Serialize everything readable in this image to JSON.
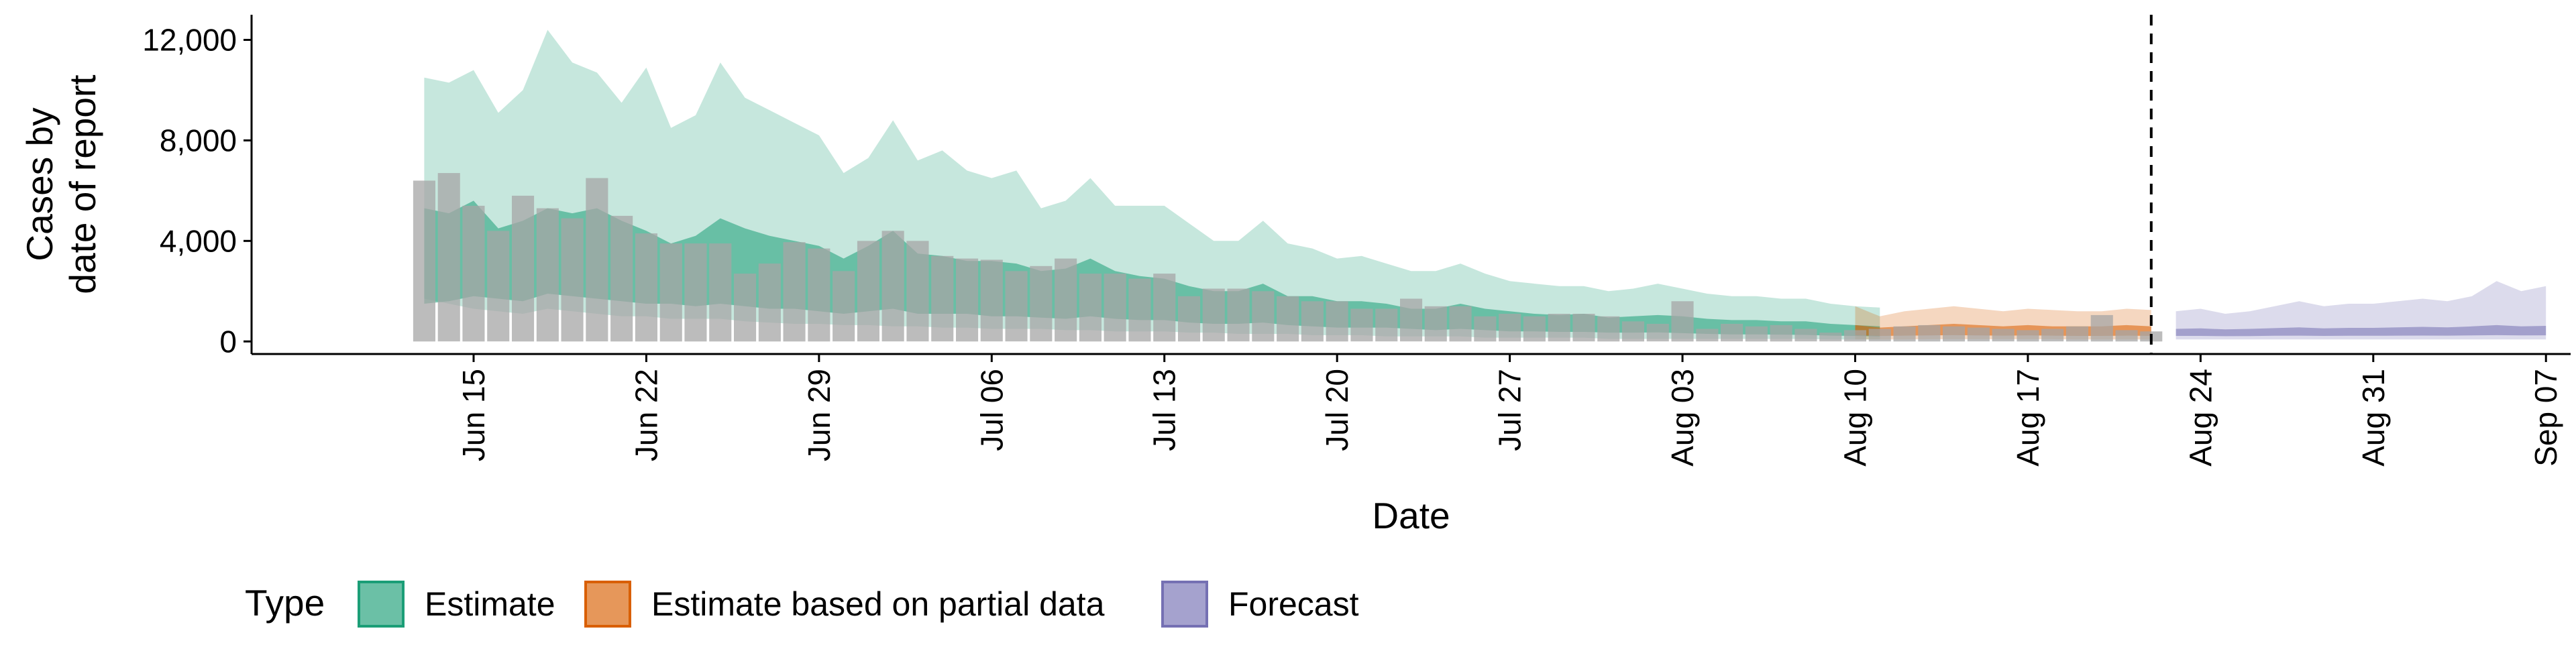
{
  "chart_data": {
    "type": "area",
    "ylabel_lines": [
      "Cases by",
      "date of report"
    ],
    "xlabel": "Date",
    "ylim": [
      -500,
      13000
    ],
    "xlim": [
      "2020-06-06",
      "2020-09-08"
    ],
    "y_ticks": [
      0,
      4000,
      8000,
      12000
    ],
    "y_tick_labels": [
      "0",
      "4,000",
      "8,000",
      "12,000"
    ],
    "x_ticks": [
      "2020-06-15",
      "2020-06-22",
      "2020-06-29",
      "2020-07-06",
      "2020-07-13",
      "2020-07-20",
      "2020-07-27",
      "2020-08-03",
      "2020-08-10",
      "2020-08-17",
      "2020-08-24",
      "2020-08-31",
      "2020-09-07"
    ],
    "x_tick_labels": [
      "Jun 15",
      "Jun 22",
      "Jun 29",
      "Jul 06",
      "Jul 13",
      "Jul 20",
      "Jul 27",
      "Aug 03",
      "Aug 10",
      "Aug 17",
      "Aug 24",
      "Aug 31",
      "Sep 07"
    ],
    "vline_date": "2020-08-22",
    "dates": [
      "2020-06-13",
      "2020-06-14",
      "2020-06-15",
      "2020-06-16",
      "2020-06-17",
      "2020-06-18",
      "2020-06-19",
      "2020-06-20",
      "2020-06-21",
      "2020-06-22",
      "2020-06-23",
      "2020-06-24",
      "2020-06-25",
      "2020-06-26",
      "2020-06-27",
      "2020-06-28",
      "2020-06-29",
      "2020-06-30",
      "2020-07-01",
      "2020-07-02",
      "2020-07-03",
      "2020-07-04",
      "2020-07-05",
      "2020-07-06",
      "2020-07-07",
      "2020-07-08",
      "2020-07-09",
      "2020-07-10",
      "2020-07-11",
      "2020-07-12",
      "2020-07-13",
      "2020-07-14",
      "2020-07-15",
      "2020-07-16",
      "2020-07-17",
      "2020-07-18",
      "2020-07-19",
      "2020-07-20",
      "2020-07-21",
      "2020-07-22",
      "2020-07-23",
      "2020-07-24",
      "2020-07-25",
      "2020-07-26",
      "2020-07-27",
      "2020-07-28",
      "2020-07-29",
      "2020-07-30",
      "2020-07-31",
      "2020-08-01",
      "2020-08-02",
      "2020-08-03",
      "2020-08-04",
      "2020-08-05",
      "2020-08-06",
      "2020-08-07",
      "2020-08-08",
      "2020-08-09",
      "2020-08-10",
      "2020-08-11",
      "2020-08-12",
      "2020-08-13",
      "2020-08-14",
      "2020-08-15",
      "2020-08-16",
      "2020-08-17",
      "2020-08-18",
      "2020-08-19",
      "2020-08-20",
      "2020-08-21",
      "2020-08-22"
    ],
    "observed_cases": [
      6400,
      6700,
      5400,
      4400,
      5800,
      5300,
      4900,
      6500,
      5000,
      4300,
      3900,
      3900,
      3900,
      2700,
      3100,
      3950,
      3700,
      2800,
      4000,
      4400,
      4000,
      3400,
      3300,
      3250,
      2800,
      3000,
      3300,
      2700,
      2700,
      2500,
      2700,
      1800,
      2100,
      2100,
      2000,
      1800,
      1600,
      1600,
      1300,
      1300,
      1700,
      1400,
      1400,
      1000,
      1100,
      1000,
      1100,
      1100,
      1000,
      800,
      700,
      1600,
      500,
      700,
      600,
      650,
      500,
      350,
      450,
      500,
      600,
      650,
      600,
      550,
      500,
      450,
      500,
      600,
      1050,
      450,
      400
    ],
    "series": [
      {
        "name": "Estimate",
        "color": "#1b9e77",
        "start_date": "2020-06-13",
        "outer_upper": [
          10500,
          10300,
          10800,
          9100,
          10000,
          12400,
          11100,
          10700,
          9500,
          10900,
          8500,
          9000,
          11100,
          9700,
          9200,
          8700,
          8200,
          6700,
          7300,
          8800,
          7200,
          7600,
          6800,
          6500,
          6800,
          5300,
          5600,
          6500,
          5400,
          5400,
          5400,
          4700,
          4000,
          4000,
          4800,
          3900,
          3700,
          3300,
          3400,
          3100,
          2800,
          2800,
          3100,
          2700,
          2400,
          2300,
          2200,
          2200,
          2000,
          2100,
          2300,
          2100,
          1900,
          1800,
          1800,
          1700,
          1700,
          1500,
          1400,
          1350
        ],
        "outer_lower": [
          1700,
          1500,
          1300,
          1200,
          1100,
          1300,
          1200,
          1100,
          1000,
          1000,
          900,
          900,
          900,
          800,
          750,
          700,
          700,
          650,
          650,
          600,
          600,
          550,
          550,
          500,
          500,
          500,
          450,
          450,
          400,
          400,
          400,
          350,
          350,
          300,
          300,
          300,
          250,
          250,
          250,
          200,
          200,
          200,
          200,
          150,
          150,
          150,
          150,
          150,
          100,
          100,
          100,
          100,
          100,
          100,
          100,
          100,
          100,
          80,
          80,
          80
        ],
        "inner_upper": [
          5300,
          5100,
          5600,
          4500,
          4800,
          5300,
          5100,
          5300,
          4800,
          4400,
          3900,
          4200,
          4900,
          4500,
          4200,
          4000,
          3800,
          3300,
          3800,
          4400,
          3500,
          3400,
          3200,
          3200,
          3100,
          2800,
          2900,
          3300,
          2800,
          2600,
          2500,
          2200,
          2000,
          2000,
          2300,
          1800,
          1800,
          1600,
          1600,
          1500,
          1300,
          1300,
          1500,
          1300,
          1200,
          1100,
          1050,
          1100,
          950,
          1000,
          1050,
          1000,
          900,
          850,
          850,
          800,
          800,
          700,
          650,
          600
        ],
        "inner_lower": [
          1500,
          1600,
          1800,
          1700,
          1600,
          1900,
          1800,
          1700,
          1600,
          1500,
          1500,
          1400,
          1500,
          1400,
          1300,
          1300,
          1200,
          1100,
          1200,
          1300,
          1100,
          1100,
          1100,
          1000,
          1000,
          950,
          900,
          1000,
          900,
          850,
          850,
          750,
          700,
          700,
          750,
          650,
          600,
          550,
          550,
          550,
          500,
          450,
          500,
          450,
          400,
          400,
          380,
          380,
          350,
          350,
          360,
          330,
          300,
          280,
          280,
          270,
          260,
          230,
          220,
          200
        ]
      },
      {
        "name": "Estimate based on partial data",
        "color": "#d95f02",
        "start_date": "2020-08-10",
        "outer_upper": [
          1400,
          1000,
          1200,
          1300,
          1400,
          1300,
          1200,
          1300,
          1250,
          1200,
          1200,
          1300,
          1250
        ],
        "outer_lower": [
          80,
          80,
          80,
          90,
          90,
          90,
          90,
          90,
          90,
          80,
          80,
          80,
          80
        ],
        "inner_upper": [
          650,
          550,
          600,
          650,
          700,
          650,
          600,
          650,
          600,
          600,
          600,
          650,
          600
        ],
        "inner_lower": [
          250,
          220,
          230,
          240,
          250,
          240,
          230,
          240,
          230,
          220,
          220,
          230,
          220
        ]
      },
      {
        "name": "Forecast",
        "color": "#7570b3",
        "start_date": "2020-08-23",
        "outer_upper": [
          1200,
          1300,
          1100,
          1200,
          1400,
          1600,
          1400,
          1500,
          1500,
          1600,
          1700,
          1600,
          1800,
          2400,
          2000,
          2200
        ],
        "outer_lower": [
          80,
          80,
          80,
          80,
          80,
          80,
          80,
          80,
          80,
          80,
          80,
          80,
          80,
          80,
          80,
          80
        ],
        "inner_upper": [
          500,
          520,
          480,
          500,
          530,
          560,
          520,
          540,
          540,
          560,
          580,
          560,
          600,
          650,
          600,
          620
        ],
        "inner_lower": [
          220,
          220,
          210,
          215,
          225,
          230,
          220,
          225,
          225,
          230,
          235,
          230,
          240,
          250,
          240,
          245
        ]
      }
    ],
    "legend": {
      "title": "Type",
      "position": "bottom",
      "items": [
        {
          "label": "Estimate",
          "color": "#1b9e77"
        },
        {
          "label": "Estimate based on partial data",
          "color": "#d95f02"
        },
        {
          "label": "Forecast",
          "color": "#7570b3"
        }
      ]
    },
    "bar_color": "#a6a6a6",
    "grid": false
  }
}
